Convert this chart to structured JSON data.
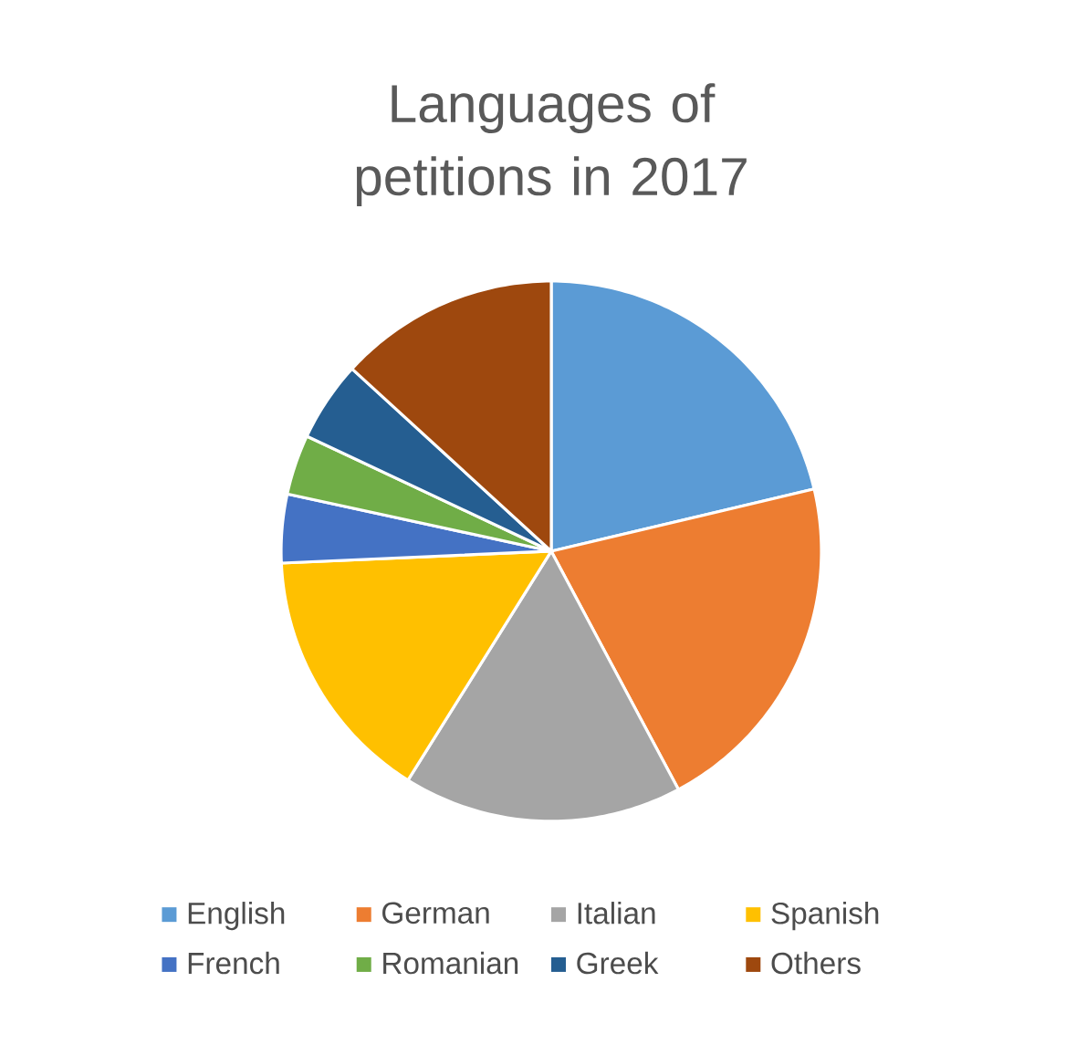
{
  "chart_data": {
    "type": "pie",
    "title": "Languages of petitions in 2017",
    "categories": [
      "English",
      "German",
      "Italian",
      "Spanish",
      "French",
      "Romanian",
      "Greek",
      "Others"
    ],
    "values": [
      21.3,
      20.9,
      16.7,
      15.4,
      4.1,
      3.6,
      4.8,
      13.2
    ],
    "colors": [
      "#5b9bd5",
      "#ed7d31",
      "#a5a5a5",
      "#ffc000",
      "#4472c4",
      "#70ad47",
      "#255e91",
      "#9e480e"
    ],
    "legend": "bottom"
  }
}
